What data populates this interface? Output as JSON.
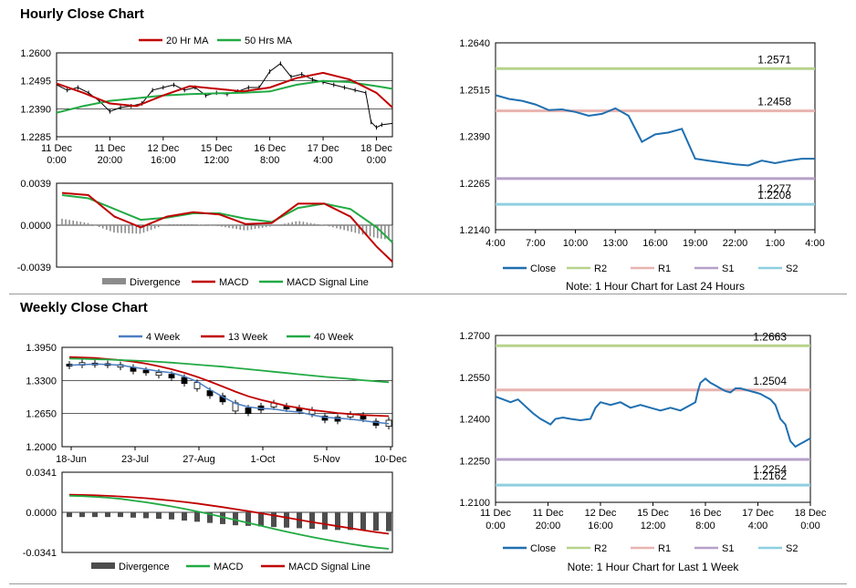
{
  "titles": {
    "hourly": "Hourly Close Chart",
    "weekly": "Weekly Close Chart"
  },
  "chart_data": [
    {
      "id": "hourly-price",
      "type": "line",
      "ylim": [
        1.2285,
        1.26
      ],
      "yticks": [
        "1.2600",
        "1.2495",
        "1.2390",
        "1.2285"
      ],
      "xticks": [
        [
          "11 Dec",
          "0:00"
        ],
        [
          "11 Dec",
          "20:00"
        ],
        [
          "12 Dec",
          "16:00"
        ],
        [
          "15 Dec",
          "12:00"
        ],
        [
          "16 Dec",
          "8:00"
        ],
        [
          "17 Dec",
          "4:00"
        ],
        [
          "18 Dec",
          "0:00"
        ]
      ],
      "legend": [
        "20 Hr MA",
        "50 Hrs MA"
      ],
      "colors": {
        "ma20": "#c00000",
        "ma50": "#22aa44",
        "price": "#000000"
      },
      "series": [
        {
          "name": "20 Hr MA",
          "x": [
            0,
            0.5,
            1,
            1.5,
            2,
            2.5,
            3,
            3.5,
            4,
            4.5,
            5,
            5.5,
            6,
            6.3
          ],
          "values": [
            1.2485,
            1.245,
            1.241,
            1.24,
            1.244,
            1.2475,
            1.2465,
            1.2455,
            1.247,
            1.2505,
            1.2525,
            1.25,
            1.245,
            1.2395
          ]
        },
        {
          "name": "50 Hrs MA",
          "x": [
            0,
            0.5,
            1,
            1.5,
            2,
            2.5,
            3,
            3.5,
            4,
            4.5,
            5,
            5.5,
            6,
            6.3
          ],
          "values": [
            1.2375,
            1.24,
            1.242,
            1.243,
            1.244,
            1.2445,
            1.2448,
            1.245,
            1.2455,
            1.248,
            1.2495,
            1.249,
            1.2475,
            1.2465
          ]
        },
        {
          "name": "Close",
          "x": [
            0,
            0.2,
            0.4,
            0.6,
            0.8,
            1,
            1.2,
            1.4,
            1.6,
            1.8,
            2,
            2.2,
            2.4,
            2.6,
            2.8,
            3,
            3.2,
            3.4,
            3.6,
            3.8,
            4,
            4.2,
            4.4,
            4.6,
            4.8,
            5,
            5.2,
            5.4,
            5.6,
            5.8,
            5.9,
            6,
            6.1,
            6.3
          ],
          "values": [
            1.248,
            1.246,
            1.247,
            1.245,
            1.242,
            1.238,
            1.2395,
            1.24,
            1.241,
            1.246,
            1.247,
            1.248,
            1.246,
            1.247,
            1.244,
            1.245,
            1.2445,
            1.2455,
            1.247,
            1.247,
            1.253,
            1.256,
            1.251,
            1.252,
            1.25,
            1.249,
            1.248,
            1.247,
            1.246,
            1.245,
            1.234,
            1.232,
            1.233,
            1.2335
          ]
        }
      ]
    },
    {
      "id": "hourly-macd",
      "type": "line",
      "ylim": [
        -0.0039,
        0.0039
      ],
      "yticks": [
        "0.0039",
        "0.0000",
        "-0.0039"
      ],
      "legend": [
        "Divergence",
        "MACD",
        "MACD Signal Line"
      ],
      "colors": {
        "div": "#8c8c8c",
        "macd": "#c00000",
        "signal": "#22aa44"
      },
      "x": [
        0,
        0.5,
        1,
        1.5,
        2,
        2.5,
        3,
        3.5,
        4,
        4.5,
        5,
        5.5,
        6,
        6.3
      ],
      "series": [
        {
          "name": "MACD",
          "values": [
            0.003,
            0.0028,
            0.0008,
            -0.0002,
            0.0008,
            0.0012,
            0.001,
            0.0001,
            0.0002,
            0.002,
            0.002,
            0.0008,
            -0.002,
            -0.0034
          ]
        },
        {
          "name": "MACD Signal Line",
          "values": [
            0.0028,
            0.0025,
            0.0015,
            0.0005,
            0.0007,
            0.0011,
            0.0011,
            0.0006,
            0.0003,
            0.0016,
            0.002,
            0.0015,
            -0.0002,
            -0.0016
          ]
        },
        {
          "name": "Divergence",
          "values": [
            0.0006,
            0.0002,
            -0.0007,
            -0.0008,
            0.0001,
            0.0001,
            -0.0001,
            -0.0005,
            -0.0001,
            0.0004,
            0.0,
            -0.0006,
            -0.0012,
            -0.0014
          ]
        }
      ]
    },
    {
      "id": "hourly-sr",
      "type": "line",
      "ylim": [
        1.214,
        1.264
      ],
      "yticks": [
        "1.2640",
        "1.2515",
        "1.2390",
        "1.2265",
        "1.2140"
      ],
      "xticks": [
        "4:00",
        "7:00",
        "10:00",
        "13:00",
        "16:00",
        "19:00",
        "22:00",
        "1:00",
        "4:00"
      ],
      "legend": [
        "Close",
        "R2",
        "R1",
        "S1",
        "S2"
      ],
      "note": "Note: 1 Hour Chart for Last 24 Hours",
      "colors": {
        "close": "#1f6fb0",
        "R2": "#b7d38a",
        "R1": "#e8b4b0",
        "S1": "#b6a0c8",
        "S2": "#8ecfe0"
      },
      "levels": {
        "R2": 1.2571,
        "R1": 1.2458,
        "S1": 1.2277,
        "S2": 1.2208
      },
      "level_labels": {
        "R2": "1.2571",
        "R1": "1.2458",
        "S1": "1.2277",
        "S2": "1.2208"
      },
      "x": [
        0,
        1,
        2,
        3,
        4,
        5,
        6,
        7,
        8,
        9,
        10,
        11,
        12,
        13,
        14,
        15,
        16,
        17,
        18,
        19,
        20,
        21,
        22,
        23,
        24
      ],
      "values": [
        1.25,
        1.249,
        1.2485,
        1.2475,
        1.246,
        1.2462,
        1.2455,
        1.2445,
        1.245,
        1.2465,
        1.2445,
        1.2375,
        1.2395,
        1.24,
        1.241,
        1.233,
        1.2325,
        1.232,
        1.2315,
        1.2312,
        1.2325,
        1.2318,
        1.2325,
        1.233,
        1.233
      ]
    },
    {
      "id": "weekly-price",
      "type": "line",
      "ylim": [
        1.2,
        1.395
      ],
      "yticks": [
        "1.3950",
        "1.3300",
        "1.2650",
        "1.2000"
      ],
      "xticks": [
        "18-Jun",
        "23-Jul",
        "27-Aug",
        "1-Oct",
        "5-Nov",
        "10-Dec"
      ],
      "legend": [
        "4 Week",
        "13 Week",
        "40 Week"
      ],
      "colors": {
        "w4": "#4a7ec2",
        "w13": "#c00000",
        "w40": "#22aa44",
        "candle": "#000000"
      },
      "x": [
        0,
        1,
        2,
        3,
        4,
        5,
        6,
        7,
        8,
        9,
        10,
        11,
        12,
        13,
        14,
        15,
        16,
        17,
        18,
        19,
        20,
        21,
        22,
        23,
        24,
        25
      ],
      "series": [
        {
          "name": "4 Week",
          "values": [
            1.36,
            1.361,
            1.362,
            1.3615,
            1.36,
            1.356,
            1.352,
            1.348,
            1.345,
            1.338,
            1.328,
            1.312,
            1.298,
            1.285,
            1.278,
            1.275,
            1.274,
            1.27,
            1.268,
            1.262,
            1.258,
            1.256,
            1.254,
            1.251,
            1.248,
            1.245
          ]
        },
        {
          "name": "13 Week",
          "values": [
            1.376,
            1.375,
            1.374,
            1.372,
            1.37,
            1.367,
            1.363,
            1.358,
            1.352,
            1.345,
            1.337,
            1.328,
            1.318,
            1.308,
            1.299,
            1.292,
            1.286,
            1.28,
            1.276,
            1.272,
            1.269,
            1.266,
            1.264,
            1.262,
            1.261,
            1.26
          ]
        },
        {
          "name": "40 Week",
          "values": [
            1.373,
            1.3725,
            1.3715,
            1.371,
            1.37,
            1.369,
            1.368,
            1.3665,
            1.365,
            1.363,
            1.361,
            1.359,
            1.357,
            1.3545,
            1.352,
            1.3495,
            1.347,
            1.3445,
            1.342,
            1.3395,
            1.337,
            1.335,
            1.333,
            1.3305,
            1.3285,
            1.3265
          ]
        }
      ],
      "candles": [
        [
          1.358,
          1.362
        ],
        [
          1.36,
          1.365
        ],
        [
          1.361,
          1.364
        ],
        [
          1.36,
          1.363
        ],
        [
          1.356,
          1.361
        ],
        [
          1.348,
          1.356
        ],
        [
          1.345,
          1.35
        ],
        [
          1.34,
          1.346
        ],
        [
          1.335,
          1.342
        ],
        [
          1.324,
          1.336
        ],
        [
          1.314,
          1.326
        ],
        [
          1.3,
          1.31
        ],
        [
          1.288,
          1.3
        ],
        [
          1.27,
          1.286
        ],
        [
          1.266,
          1.276
        ],
        [
          1.272,
          1.28
        ],
        [
          1.278,
          1.286
        ],
        [
          1.274,
          1.28
        ],
        [
          1.27,
          1.276
        ],
        [
          1.264,
          1.272
        ],
        [
          1.252,
          1.26
        ],
        [
          1.25,
          1.258
        ],
        [
          1.258,
          1.264
        ],
        [
          1.254,
          1.262
        ],
        [
          1.242,
          1.25
        ],
        [
          1.24,
          1.252
        ]
      ]
    },
    {
      "id": "weekly-macd",
      "type": "line",
      "ylim": [
        -0.0341,
        0.0341
      ],
      "yticks": [
        "0.0341",
        "0.0000",
        "-0.0341"
      ],
      "legend": [
        "Divergence",
        "MACD",
        "MACD Signal Line"
      ],
      "colors": {
        "div": "#4d4d4d",
        "macd": "#22aa44",
        "signal": "#c00000"
      },
      "x": [
        0,
        1,
        2,
        3,
        4,
        5,
        6,
        7,
        8,
        9,
        10,
        11,
        12,
        13,
        14,
        15,
        16,
        17,
        18,
        19,
        20,
        21,
        22,
        23,
        24,
        25
      ],
      "series": [
        {
          "name": "MACD",
          "values": [
            0.014,
            0.0138,
            0.0132,
            0.0125,
            0.0115,
            0.01,
            0.0085,
            0.0068,
            0.005,
            0.003,
            0.0008,
            -0.0015,
            -0.004,
            -0.0065,
            -0.009,
            -0.0115,
            -0.014,
            -0.0165,
            -0.0188,
            -0.021,
            -0.023,
            -0.025,
            -0.0268,
            -0.0285,
            -0.03,
            -0.031
          ]
        },
        {
          "name": "MACD Signal Line",
          "values": [
            0.015,
            0.0148,
            0.0145,
            0.014,
            0.0135,
            0.0128,
            0.012,
            0.011,
            0.01,
            0.0088,
            0.0075,
            0.006,
            0.0044,
            0.0027,
            0.001,
            -0.0008,
            -0.0026,
            -0.0045,
            -0.0064,
            -0.0083,
            -0.01,
            -0.0118,
            -0.0135,
            -0.0152,
            -0.0168,
            -0.0182
          ]
        },
        {
          "name": "Divergence",
          "values": [
            -0.004,
            -0.004,
            -0.004,
            -0.004,
            -0.004,
            -0.0045,
            -0.005,
            -0.0055,
            -0.006,
            -0.007,
            -0.008,
            -0.009,
            -0.01,
            -0.011,
            -0.0115,
            -0.012,
            -0.0125,
            -0.013,
            -0.0135,
            -0.014,
            -0.0145,
            -0.015,
            -0.015,
            -0.0155,
            -0.0155,
            -0.016
          ]
        }
      ]
    },
    {
      "id": "weekly-sr",
      "type": "line",
      "ylim": [
        1.21,
        1.27
      ],
      "yticks": [
        "1.2700",
        "1.2550",
        "1.2400",
        "1.2250",
        "1.2100"
      ],
      "xticks": [
        [
          "11 Dec",
          "0:00"
        ],
        [
          "11 Dec",
          "20:00"
        ],
        [
          "12 Dec",
          "16:00"
        ],
        [
          "15 Dec",
          "12:00"
        ],
        [
          "16 Dec",
          "8:00"
        ],
        [
          "17 Dec",
          "4:00"
        ],
        [
          "18 Dec",
          "0:00"
        ]
      ],
      "legend": [
        "Close",
        "R2",
        "R1",
        "S1",
        "S2"
      ],
      "note": "Note: 1 Hour Chart for Last 1 Week",
      "colors": {
        "close": "#1f6fb0",
        "R2": "#b7d38a",
        "R1": "#e8b4b0",
        "S1": "#b6a0c8",
        "S2": "#8ecfe0"
      },
      "levels": {
        "R2": 1.2663,
        "R1": 1.2504,
        "S1": 1.2254,
        "S2": 1.2162
      },
      "level_labels": {
        "R2": "1.2663",
        "R1": "1.2504",
        "S1": "1.2254",
        "S2": "1.2162"
      },
      "x": [
        0,
        0.15,
        0.3,
        0.45,
        0.6,
        0.75,
        0.9,
        1,
        1.1,
        1.2,
        1.35,
        1.5,
        1.7,
        1.9,
        2,
        2.1,
        2.3,
        2.5,
        2.7,
        2.9,
        3.1,
        3.3,
        3.5,
        3.7,
        3.9,
        4,
        4.05,
        4.1,
        4.2,
        4.3,
        4.4,
        4.5,
        4.6,
        4.7,
        4.8,
        4.9,
        5,
        5.1,
        5.2,
        5.3,
        5.4,
        5.5,
        5.6,
        5.7,
        5.8,
        5.9,
        6,
        6.1,
        6.2,
        6.3
      ],
      "values": [
        1.248,
        1.247,
        1.246,
        1.247,
        1.2445,
        1.242,
        1.24,
        1.239,
        1.238,
        1.24,
        1.2405,
        1.24,
        1.2395,
        1.24,
        1.244,
        1.246,
        1.245,
        1.246,
        1.244,
        1.245,
        1.244,
        1.243,
        1.244,
        1.243,
        1.245,
        1.246,
        1.25,
        1.253,
        1.2545,
        1.253,
        1.252,
        1.251,
        1.25,
        1.2495,
        1.251,
        1.251,
        1.2505,
        1.25,
        1.2495,
        1.249,
        1.248,
        1.247,
        1.245,
        1.24,
        1.238,
        1.232,
        1.23,
        1.231,
        1.232,
        1.233
      ]
    }
  ]
}
